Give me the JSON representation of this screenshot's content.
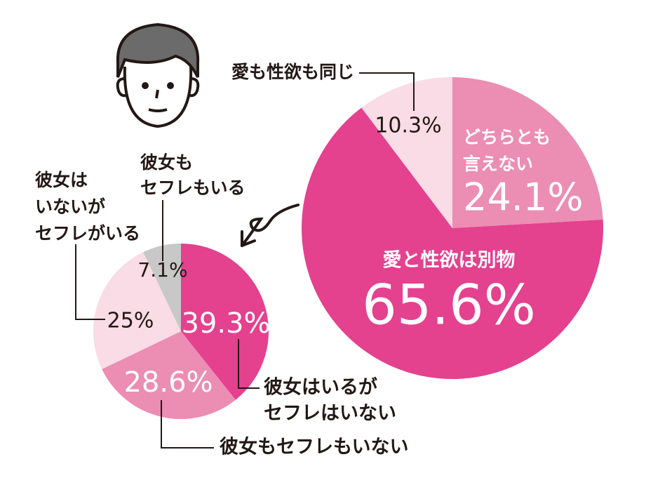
{
  "chart_data": [
    {
      "type": "pie",
      "categories": [
        [
          "どちらとも",
          "言えない"
        ],
        [
          "愛と性欲は別物"
        ],
        [
          "愛も性欲も同じ"
        ]
      ],
      "values": [
        24.1,
        65.6,
        10.3
      ],
      "value_labels": [
        "24.1%",
        "65.6%",
        "10.3%"
      ],
      "colors": [
        "#ec8db3",
        "#e4418f",
        "#f9dce6"
      ]
    },
    {
      "type": "pie",
      "categories": [
        [
          "彼女はいるが",
          "セフレはいない"
        ],
        [
          "彼女もセフレもいない"
        ],
        [
          "彼女は",
          "いないが",
          "セフレがいる"
        ],
        [
          "彼女も",
          "セフレもいる"
        ]
      ],
      "values": [
        39.3,
        28.6,
        25,
        7.1
      ],
      "value_labels": [
        "39.3%",
        "28.6%",
        "25%",
        "7.1%"
      ],
      "colors": [
        "#e4418f",
        "#ec8db3",
        "#f9dce6",
        "#c8c8c8"
      ]
    }
  ]
}
